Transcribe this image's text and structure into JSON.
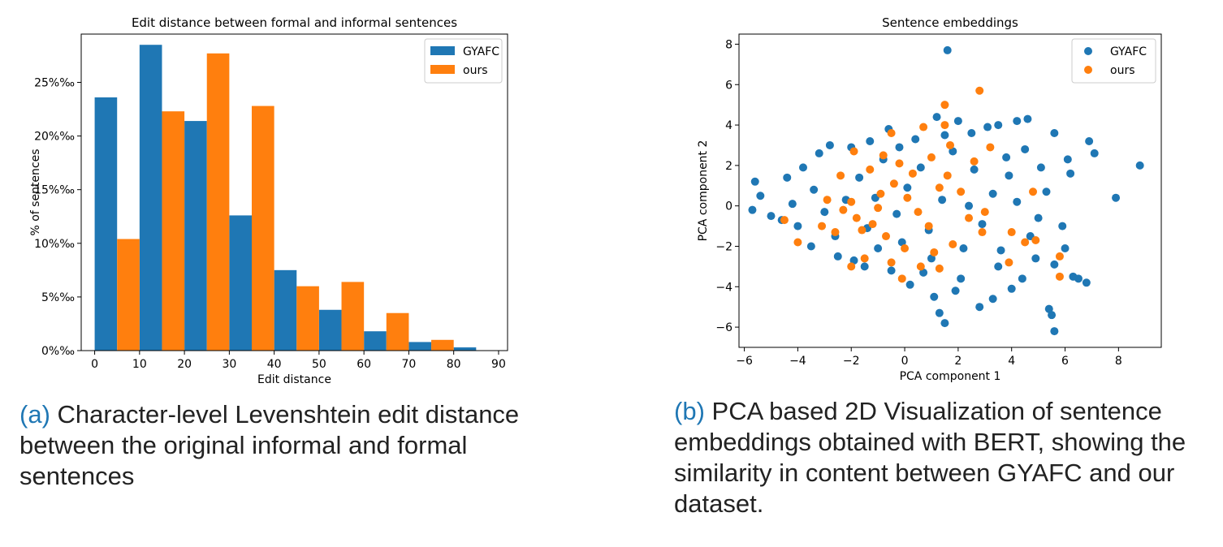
{
  "colors": {
    "gyafc": "#1f77b4",
    "ours": "#ff7f0e",
    "caption_label": "#1f77b4"
  },
  "captions": {
    "a": {
      "label": "(a)",
      "text": "Character-level Levenshtein edit distance between the original informal and formal sentences"
    },
    "b": {
      "label": "(b)",
      "text": "PCA based 2D Visualization of sentence embeddings obtained with BERT, showing the similarity in content between GYAFC and our dataset."
    }
  },
  "chart_data": [
    {
      "type": "bar",
      "title": "Edit distance between formal and informal sentences",
      "xlabel": "Edit distance",
      "ylabel": "% of sentences",
      "xlim": [
        -3,
        92
      ],
      "ylim": [
        0,
        29.5
      ],
      "xticks": [
        0,
        10,
        20,
        30,
        40,
        50,
        60,
        70,
        80,
        90
      ],
      "yticks": [
        0,
        5,
        10,
        15,
        20,
        25
      ],
      "ytick_labels": [
        "0%‰",
        "5%‰",
        "10%‰",
        "15%‰",
        "20%‰",
        "25%‰"
      ],
      "bin_edges": [
        0,
        10,
        20,
        30,
        40,
        50,
        60,
        70,
        80,
        90
      ],
      "legend_position": "top-right",
      "series": [
        {
          "name": "GYAFC",
          "values": [
            23.6,
            28.5,
            21.4,
            12.6,
            7.5,
            3.8,
            1.8,
            0.8,
            0.3
          ]
        },
        {
          "name": "ours",
          "values": [
            10.4,
            22.3,
            27.7,
            22.8,
            6.0,
            6.4,
            3.5,
            1.0,
            0.0
          ]
        }
      ],
      "grid": false
    },
    {
      "type": "scatter",
      "title": "Sentence embeddings",
      "xlabel": "PCA component 1",
      "ylabel": "PCA component 2",
      "xlim": [
        -6.2,
        9.6
      ],
      "ylim": [
        -7.0,
        8.5
      ],
      "xticks": [
        -6,
        -4,
        -2,
        0,
        2,
        4,
        6,
        8
      ],
      "xtick_labels": [
        "−6",
        "−4",
        "−2",
        "0",
        "2",
        "4",
        "6",
        "8"
      ],
      "yticks": [
        -6,
        -4,
        -2,
        0,
        2,
        4,
        6,
        8
      ],
      "ytick_labels": [
        "−6",
        "−4",
        "−2",
        "0",
        "2",
        "4",
        "6",
        "8"
      ],
      "legend_position": "top-right",
      "grid": false,
      "series": [
        {
          "name": "GYAFC",
          "points": [
            [
              1.6,
              7.7
            ],
            [
              8.8,
              2.0
            ],
            [
              7.9,
              0.4
            ],
            [
              7.1,
              2.6
            ],
            [
              6.9,
              3.2
            ],
            [
              6.8,
              -3.8
            ],
            [
              6.5,
              -3.6
            ],
            [
              6.3,
              -3.5
            ],
            [
              6.0,
              -2.1
            ],
            [
              5.6,
              -6.2
            ],
            [
              5.5,
              -5.4
            ],
            [
              5.4,
              -5.1
            ],
            [
              4.6,
              4.3
            ],
            [
              4.2,
              4.2
            ],
            [
              3.5,
              4.0
            ],
            [
              5.6,
              3.6
            ],
            [
              6.1,
              2.3
            ],
            [
              6.2,
              1.6
            ],
            [
              5.9,
              -1.0
            ],
            [
              5.6,
              -2.9
            ],
            [
              -5.6,
              1.2
            ],
            [
              -5.7,
              -0.2
            ],
            [
              -5.4,
              0.5
            ],
            [
              -5.0,
              -0.5
            ],
            [
              -4.6,
              -0.7
            ],
            [
              -4.4,
              1.4
            ],
            [
              -4.0,
              -1.0
            ],
            [
              -3.2,
              2.6
            ],
            [
              -2.8,
              3.0
            ],
            [
              -3.5,
              -2.0
            ],
            [
              -2.5,
              -2.5
            ],
            [
              -1.5,
              -3.0
            ],
            [
              -0.5,
              -3.2
            ],
            [
              0.2,
              -3.9
            ],
            [
              1.1,
              -4.5
            ],
            [
              1.5,
              -5.8
            ],
            [
              1.3,
              -5.3
            ],
            [
              2.8,
              -5.0
            ],
            [
              3.3,
              -4.6
            ],
            [
              4.0,
              -4.1
            ],
            [
              0.4,
              3.3
            ],
            [
              1.2,
              4.4
            ],
            [
              2.0,
              4.2
            ],
            [
              3.1,
              3.9
            ],
            [
              -0.6,
              3.8
            ],
            [
              -1.3,
              3.2
            ],
            [
              -2.0,
              2.9
            ],
            [
              4.4,
              -3.6
            ],
            [
              4.9,
              -2.6
            ],
            [
              3.9,
              1.5
            ],
            [
              4.5,
              2.8
            ],
            [
              5.1,
              1.9
            ],
            [
              5.3,
              0.7
            ],
            [
              5.0,
              -0.6
            ],
            [
              4.7,
              -1.5
            ],
            [
              2.5,
              3.6
            ],
            [
              -0.1,
              -1.8
            ],
            [
              1.0,
              -2.6
            ],
            [
              2.1,
              -3.6
            ],
            [
              -1.0,
              -2.1
            ],
            [
              -2.2,
              0.3
            ],
            [
              -3.4,
              0.8
            ],
            [
              -4.2,
              0.1
            ],
            [
              -1.7,
              1.4
            ],
            [
              -0.8,
              2.3
            ],
            [
              0.6,
              1.9
            ],
            [
              1.8,
              2.7
            ],
            [
              2.6,
              1.8
            ],
            [
              3.3,
              0.6
            ],
            [
              2.9,
              -0.9
            ],
            [
              2.2,
              -2.1
            ],
            [
              0.9,
              -1.2
            ],
            [
              -0.3,
              -0.4
            ],
            [
              -1.4,
              -1.1
            ],
            [
              -2.6,
              -1.5
            ],
            [
              0.1,
              0.9
            ],
            [
              1.4,
              0.3
            ],
            [
              2.4,
              0.0
            ],
            [
              3.6,
              -2.2
            ],
            [
              -3.0,
              -0.3
            ],
            [
              -1.9,
              -2.7
            ],
            [
              0.7,
              -3.3
            ],
            [
              1.9,
              -4.2
            ],
            [
              3.5,
              -3.0
            ],
            [
              4.2,
              0.2
            ],
            [
              3.8,
              2.4
            ],
            [
              1.5,
              3.5
            ],
            [
              -0.2,
              2.9
            ],
            [
              -1.1,
              0.4
            ],
            [
              -3.8,
              1.9
            ]
          ]
        },
        {
          "name": "ours",
          "points": [
            [
              2.8,
              5.7
            ],
            [
              1.5,
              5.0
            ],
            [
              1.5,
              4.0
            ],
            [
              0.7,
              3.9
            ],
            [
              -0.5,
              3.6
            ],
            [
              3.2,
              2.9
            ],
            [
              4.8,
              0.7
            ],
            [
              -4.0,
              -1.8
            ],
            [
              -4.5,
              -0.7
            ],
            [
              5.8,
              -2.5
            ],
            [
              5.8,
              -3.5
            ],
            [
              -0.1,
              -3.6
            ],
            [
              -2.0,
              -3.0
            ],
            [
              4.0,
              -1.3
            ],
            [
              4.5,
              -1.8
            ],
            [
              4.9,
              -1.7
            ],
            [
              3.9,
              -2.8
            ],
            [
              1.3,
              -3.1
            ],
            [
              0.6,
              -3.0
            ],
            [
              -1.5,
              -2.6
            ],
            [
              -2.3,
              -0.2
            ],
            [
              -2.0,
              0.2
            ],
            [
              -1.8,
              -0.6
            ],
            [
              -1.6,
              -1.2
            ],
            [
              -1.2,
              -0.9
            ],
            [
              -0.7,
              -1.5
            ],
            [
              -0.9,
              0.6
            ],
            [
              -0.4,
              1.1
            ],
            [
              0.1,
              0.4
            ],
            [
              0.5,
              -0.3
            ],
            [
              0.9,
              -1.0
            ],
            [
              1.3,
              0.9
            ],
            [
              1.6,
              1.5
            ],
            [
              2.1,
              0.7
            ],
            [
              2.4,
              -0.6
            ],
            [
              1.8,
              -1.9
            ],
            [
              1.1,
              -2.3
            ],
            [
              -2.6,
              -1.3
            ],
            [
              -2.9,
              0.3
            ],
            [
              -1.3,
              1.8
            ],
            [
              -0.8,
              2.5
            ],
            [
              -0.2,
              2.1
            ],
            [
              0.3,
              1.6
            ],
            [
              1.0,
              2.4
            ],
            [
              1.7,
              3.0
            ],
            [
              -1.9,
              2.7
            ],
            [
              -2.4,
              1.5
            ],
            [
              2.6,
              2.2
            ],
            [
              3.0,
              -0.3
            ],
            [
              0.0,
              -2.1
            ],
            [
              -0.5,
              -2.8
            ],
            [
              2.9,
              -1.3
            ],
            [
              -3.1,
              -1.0
            ],
            [
              -1.0,
              -0.1
            ]
          ]
        }
      ]
    }
  ]
}
